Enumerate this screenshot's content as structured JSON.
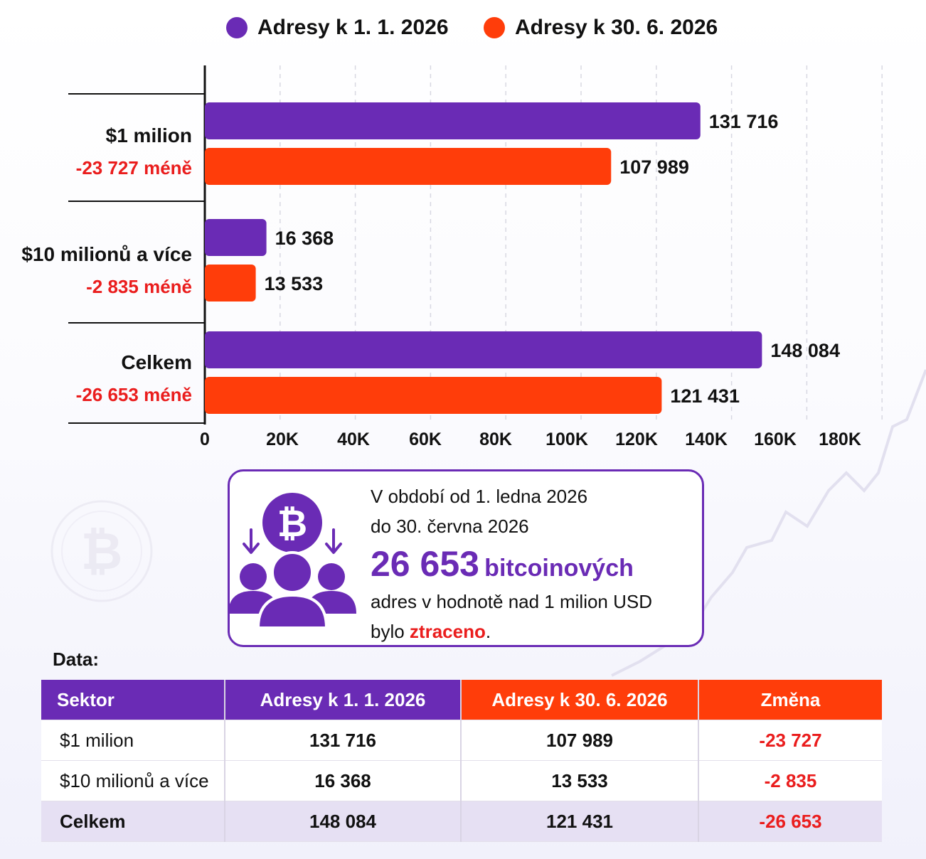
{
  "legend": [
    {
      "label": "Adresy k 1. 1. 2026",
      "color": "#6a2bb5"
    },
    {
      "label": "Adresy k 30. 6. 2026",
      "color": "#ff3d0a"
    }
  ],
  "chart_data": {
    "type": "bar",
    "orientation": "horizontal",
    "categories": [
      "$1 milion",
      "$10 milionů a více",
      "Celkem"
    ],
    "category_changes": [
      "-23 727 méně",
      "-2 835 méně",
      "-26 653 méně"
    ],
    "series": [
      {
        "name": "Adresy k 1. 1. 2026",
        "values": [
          131716,
          16368,
          148084
        ],
        "labels": [
          "131 716",
          "16 368",
          "148 084"
        ],
        "color": "#6a2bb5"
      },
      {
        "name": "Adresy k 30. 6. 2026",
        "values": [
          107989,
          13533,
          121431
        ],
        "labels": [
          "107 989",
          "13 533",
          "121 431"
        ],
        "color": "#ff3d0a"
      }
    ],
    "x_ticks": [
      "0",
      "20K",
      "40K",
      "60K",
      "80K",
      "100K",
      "120K",
      "140K",
      "160K",
      "180K"
    ],
    "grid": "vertical dashed",
    "legend_position": "top"
  },
  "info": {
    "line1": "V období od 1. ledna 2026",
    "line2": "do 30. června 2026",
    "big_number": "26 653",
    "big_word": "bitcoinových",
    "line4": "adres v hodnotě nad 1 milion USD",
    "line5_prefix": "bylo ",
    "line5_highlight": "ztraceno",
    "line5_suffix": ".",
    "icon": "bitcoin-users-icon"
  },
  "table": {
    "label": "Data:",
    "headers": [
      "Sektor",
      "Adresy k 1. 1. 2026",
      "Adresy k 30. 6. 2026",
      "Změna"
    ],
    "rows": [
      [
        "$1 milion",
        "131 716",
        "107 989",
        "-23 727"
      ],
      [
        "$10 milionů a více",
        "16 368",
        "13 533",
        "-2 835"
      ],
      [
        "Celkem",
        "148 084",
        "121 431",
        "-26 653"
      ]
    ]
  },
  "colors": {
    "purple": "#6a2bb5",
    "orange": "#ff3d0a",
    "red": "#ea1d1d"
  }
}
